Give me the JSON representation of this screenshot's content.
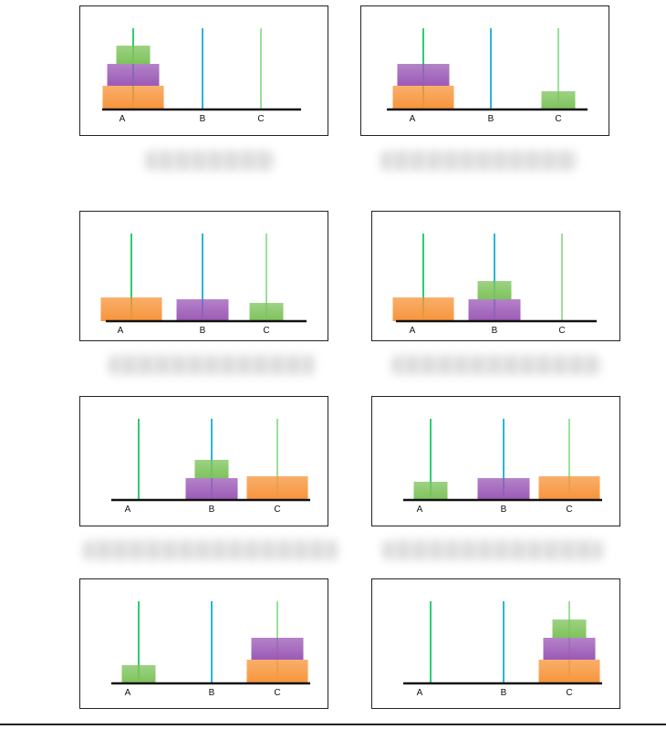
{
  "figure": {
    "panels": [
      {
        "pegs": [
          "A",
          "B",
          "C"
        ],
        "disks": {
          "A": [
            "large",
            "medium",
            "small"
          ],
          "B": [],
          "C": []
        }
      },
      {
        "pegs": [
          "A",
          "B",
          "C"
        ],
        "disks": {
          "A": [
            "large",
            "medium"
          ],
          "B": [],
          "C": [
            "small"
          ]
        }
      },
      {
        "pegs": [
          "A",
          "B",
          "C"
        ],
        "disks": {
          "A": [
            "large"
          ],
          "B": [
            "medium"
          ],
          "C": [
            "small"
          ]
        }
      },
      {
        "pegs": [
          "A",
          "B",
          "C"
        ],
        "disks": {
          "A": [
            "large"
          ],
          "B": [
            "medium",
            "small"
          ],
          "C": []
        }
      },
      {
        "pegs": [
          "A",
          "B",
          "C"
        ],
        "disks": {
          "A": [],
          "B": [
            "medium",
            "small"
          ],
          "C": [
            "large"
          ]
        }
      },
      {
        "pegs": [
          "A",
          "B",
          "C"
        ],
        "disks": {
          "A": [
            "small"
          ],
          "B": [
            "medium"
          ],
          "C": [
            "large"
          ]
        }
      },
      {
        "pegs": [
          "A",
          "B",
          "C"
        ],
        "disks": {
          "A": [
            "small"
          ],
          "B": [],
          "C": [
            "large",
            "medium"
          ]
        }
      },
      {
        "pegs": [
          "A",
          "B",
          "C"
        ],
        "disks": {
          "A": [],
          "B": [],
          "C": [
            "large",
            "medium",
            "small"
          ]
        }
      }
    ]
  },
  "colors": {
    "peg_a": "#2ecc71",
    "peg_b": "#2bb5d8",
    "peg_c": "#9be09b",
    "disk_large": "#f7943a",
    "disk_medium": "#9b59b6",
    "disk_small": "#7dc35b",
    "base": "#111111"
  }
}
